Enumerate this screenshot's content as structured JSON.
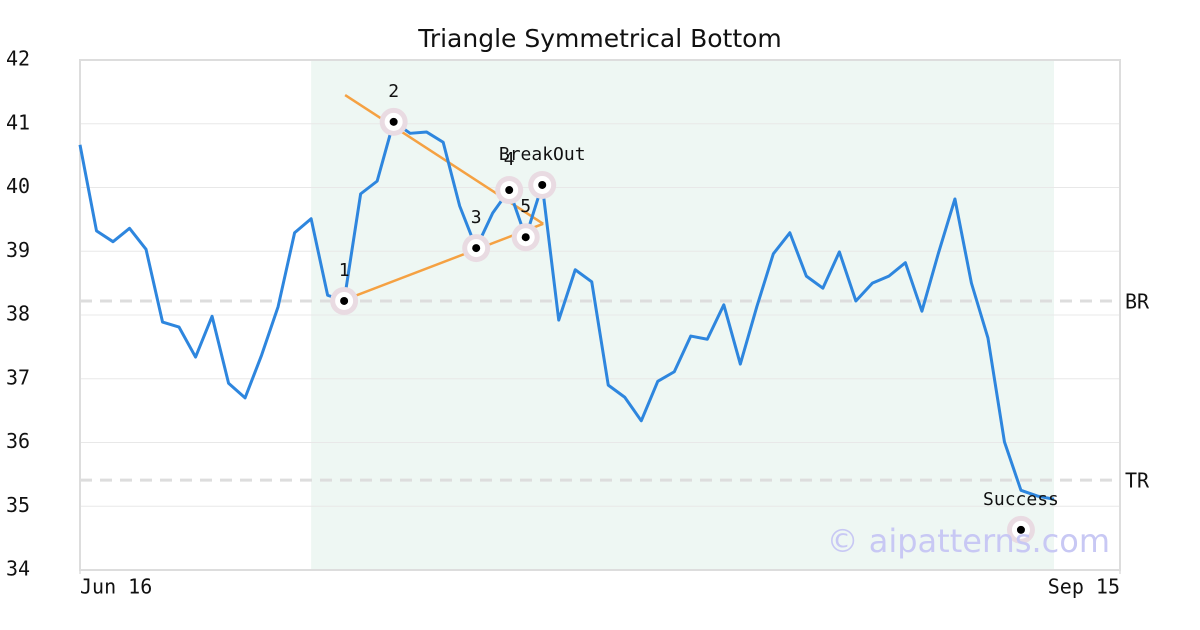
{
  "chart_data": {
    "type": "line",
    "title": "Triangle Symmetrical Bottom",
    "x": [
      0,
      1,
      2,
      3,
      4,
      5,
      6,
      7,
      8,
      9,
      10,
      11,
      12,
      13,
      14,
      15,
      16,
      17,
      18,
      19,
      20,
      21,
      22,
      23,
      24,
      25,
      26,
      27,
      28,
      29,
      30,
      31,
      32,
      33,
      34,
      35,
      36,
      37,
      38,
      39,
      40,
      41,
      42,
      43,
      44,
      45,
      46,
      47,
      48,
      49,
      50,
      51,
      52,
      53,
      54,
      55,
      56,
      57,
      58,
      59
    ],
    "values": [
      40.67,
      39.32,
      39.15,
      39.36,
      39.03,
      37.89,
      37.81,
      37.34,
      37.98,
      36.93,
      36.7,
      37.37,
      38.13,
      39.29,
      39.51,
      38.31,
      38.22,
      39.9,
      40.1,
      41.03,
      40.85,
      40.87,
      40.71,
      39.71,
      39.05,
      39.6,
      39.96,
      39.22,
      40.04,
      37.92,
      38.71,
      38.52,
      36.9,
      36.71,
      36.34,
      36.96,
      37.11,
      37.67,
      37.62,
      38.16,
      37.23,
      38.13,
      38.96,
      39.29,
      38.61,
      38.42,
      38.99,
      38.22,
      38.5,
      38.61,
      38.82,
      38.06,
      38.97,
      39.82,
      38.5,
      37.64,
      36.01,
      35.25,
      35.16,
      35.11
    ],
    "color": "#2e86de",
    "xlim": [
      0,
      63
    ],
    "xticks": [
      {
        "value": 0,
        "label": "Jun 16"
      },
      {
        "value": 63,
        "label": "Sep 15"
      }
    ],
    "ylim": [
      34,
      42
    ],
    "yticks": [
      34,
      35,
      36,
      37,
      38,
      39,
      40,
      41,
      42
    ],
    "grid": true,
    "highlight": [
      14,
      59
    ],
    "levels": [
      {
        "value": 38.22,
        "label": "BR"
      },
      {
        "value": 35.41,
        "label": "TR"
      }
    ],
    "trendlines": [
      {
        "x": [
          16.06,
          28.06
        ],
        "y": [
          41.45,
          39.43
        ]
      },
      {
        "x": [
          16.06,
          28.06
        ],
        "y": [
          38.24,
          39.43
        ]
      }
    ],
    "trend_color": "#f5a142",
    "points": [
      {
        "x": 16,
        "y": 38.22,
        "label": "1"
      },
      {
        "x": 19,
        "y": 41.03,
        "label": "2"
      },
      {
        "x": 24,
        "y": 39.05,
        "label": "3"
      },
      {
        "x": 26,
        "y": 39.96,
        "label": "4"
      },
      {
        "x": 27,
        "y": 39.22,
        "label": "5"
      },
      {
        "x": 28,
        "y": 40.04,
        "label": "BreakOut"
      },
      {
        "x": 57,
        "y": 34.63,
        "label": "Success"
      }
    ],
    "watermark": "© aipatterns.com"
  }
}
